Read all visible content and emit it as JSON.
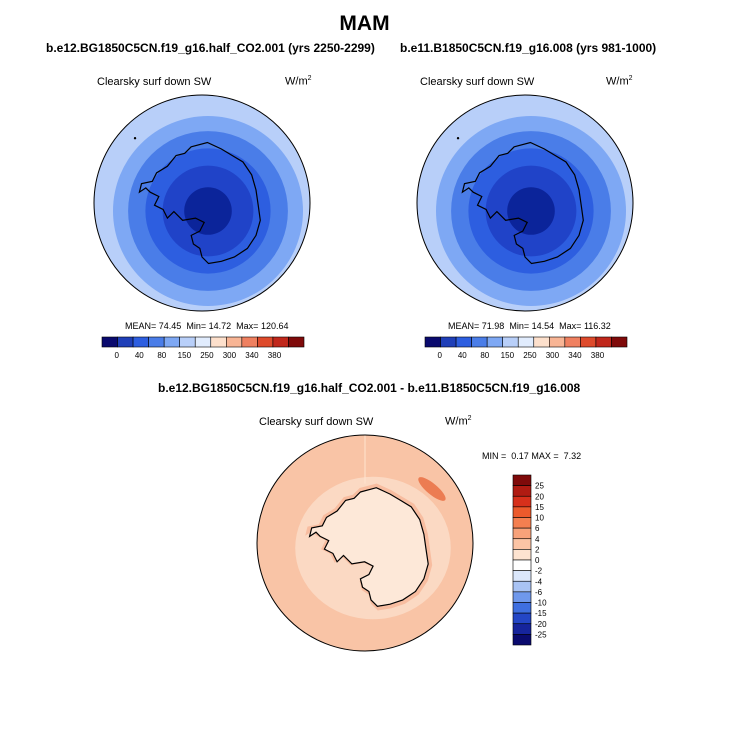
{
  "figure": {
    "title": "MAM"
  },
  "chart_data": [
    {
      "type": "heatmap",
      "title": "b.e12.BG1850C5CN.f19_g16.half_CO2.001 (yrs 2250-2299)",
      "variable": "Clearsky surf down SW",
      "units": "W/m",
      "units_sup": "2",
      "projection": "south-polar-stereographic",
      "stats": {
        "mean_label": "MEAN=",
        "mean": "74.45",
        "min_label": "Min=",
        "min": "14.72",
        "max_label": "Max=",
        "max": "120.64"
      },
      "colorbar": {
        "orientation": "horizontal",
        "levels": [
          "0",
          "40",
          "80",
          "150",
          "250",
          "300",
          "340",
          "380"
        ],
        "colors": [
          "#0a0a6e",
          "#1f3fb8",
          "#2d5ee0",
          "#4a7de8",
          "#7ea8f4",
          "#b8cff9",
          "#e1ecfd",
          "#fde0cc",
          "#f8b595",
          "#ef8060",
          "#de4a2b",
          "#c0271b",
          "#7f0a0a"
        ]
      },
      "rings": [
        {
          "label": "outer",
          "color": "#b8cff9"
        },
        {
          "label": "ring2",
          "color": "#7ea8f4"
        },
        {
          "label": "ring3",
          "color": "#4a7de8"
        },
        {
          "label": "ring4",
          "color": "#2d5ee0"
        },
        {
          "label": "ring5",
          "color": "#2043c8"
        },
        {
          "label": "center",
          "color": "#0b249a"
        }
      ]
    },
    {
      "type": "heatmap",
      "title": "b.e11.B1850C5CN.f19_g16.008 (yrs 981-1000)",
      "variable": "Clearsky surf down SW",
      "units": "W/m",
      "units_sup": "2",
      "projection": "south-polar-stereographic",
      "stats": {
        "mean_label": "MEAN=",
        "mean": "71.98",
        "min_label": "Min=",
        "min": "14.54",
        "max_label": "Max=",
        "max": "116.32"
      },
      "colorbar": {
        "orientation": "horizontal",
        "levels": [
          "0",
          "40",
          "80",
          "150",
          "250",
          "300",
          "340",
          "380"
        ],
        "colors": [
          "#0a0a6e",
          "#1f3fb8",
          "#2d5ee0",
          "#4a7de8",
          "#7ea8f4",
          "#b8cff9",
          "#e1ecfd",
          "#fde0cc",
          "#f8b595",
          "#ef8060",
          "#de4a2b",
          "#c0271b",
          "#7f0a0a"
        ]
      },
      "rings": [
        {
          "label": "outer",
          "color": "#b8cff9"
        },
        {
          "label": "ring2",
          "color": "#7ea8f4"
        },
        {
          "label": "ring3",
          "color": "#4a7de8"
        },
        {
          "label": "ring4",
          "color": "#2d5ee0"
        },
        {
          "label": "ring5",
          "color": "#2043c8"
        },
        {
          "label": "center",
          "color": "#0b249a"
        }
      ]
    },
    {
      "type": "heatmap",
      "title": "b.e12.BG1850C5CN.f19_g16.half_CO2.001 - b.e11.B1850C5CN.f19_g16.008",
      "variable": "Clearsky surf down SW",
      "units": "W/m",
      "units_sup": "2",
      "projection": "south-polar-stereographic",
      "stats": {
        "min_label": "MIN =",
        "min": "0.17",
        "max_label": "MAX =",
        "max": "7.32"
      },
      "colorbar": {
        "orientation": "vertical",
        "levels": [
          "25",
          "20",
          "15",
          "10",
          "6",
          "4",
          "2",
          "0",
          "-2",
          "-4",
          "-6",
          "-10",
          "-15",
          "-20",
          "-25"
        ],
        "colors": [
          "#7f0a0a",
          "#b01b12",
          "#d7301b",
          "#ec5a2c",
          "#f47f50",
          "#f8a27a",
          "#fbc4a5",
          "#fde3d0",
          "#ffffff",
          "#dbe7fb",
          "#a9c3f4",
          "#6f98ec",
          "#3f6fe0",
          "#2446c6",
          "#16249c",
          "#0a0a6e"
        ]
      },
      "regions": [
        {
          "label": "ocean-main",
          "color": "#f9c4a6"
        },
        {
          "label": "sea-ice-zone",
          "color": "#fbd9c3"
        },
        {
          "label": "continent",
          "color": "#fde8d8"
        },
        {
          "label": "east-anomaly",
          "color": "#f5a583"
        },
        {
          "label": "peak-anomaly",
          "color": "#ec7c52"
        }
      ]
    }
  ]
}
